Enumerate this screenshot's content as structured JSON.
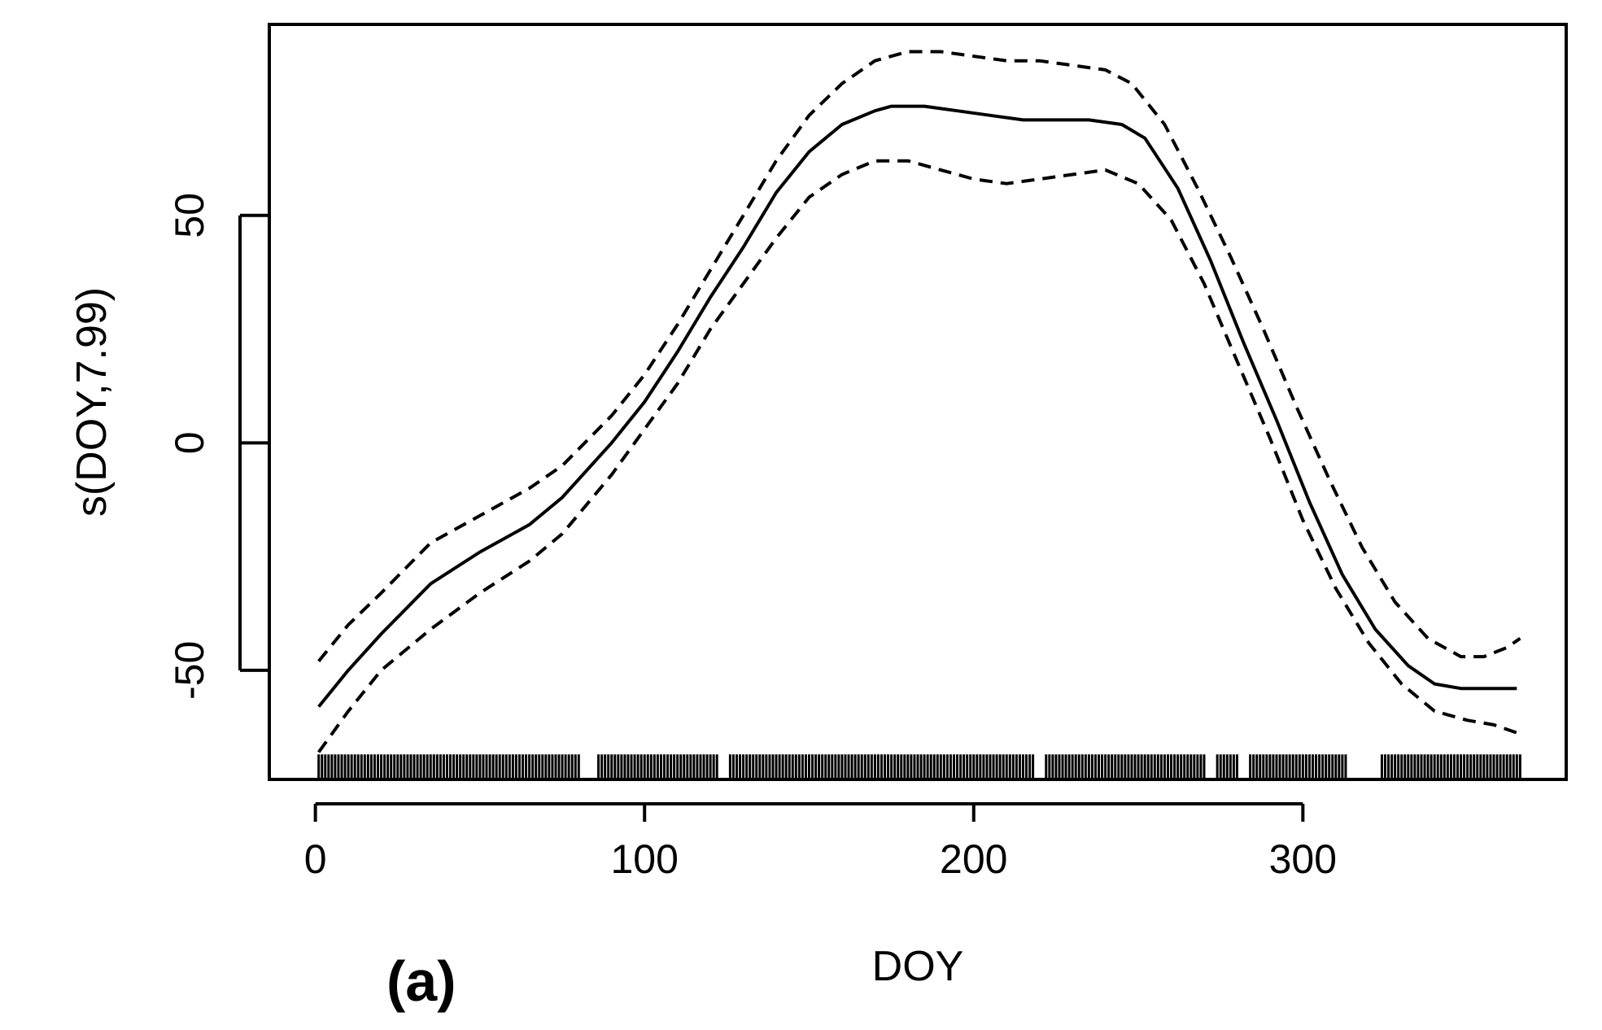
{
  "chart_data": {
    "type": "line",
    "title": "",
    "panel_label": "(a)",
    "xlabel": "DOY",
    "ylabel": "s(DOY,7.99)",
    "xlim": [
      -14,
      380
    ],
    "ylim": [
      -74,
      92
    ],
    "x_ticks": [
      0,
      100,
      200,
      300
    ],
    "x_tick_labels": [
      "0",
      "100",
      "200",
      "300"
    ],
    "y_ticks": [
      -50,
      0,
      50
    ],
    "y_tick_labels": [
      "-50",
      "0",
      "50"
    ],
    "grid": false,
    "legend": "none",
    "line_color": "#000000",
    "series": [
      {
        "style": "solid",
        "x": [
          1,
          10,
          20,
          35,
          50,
          65,
          75,
          90,
          100,
          110,
          120,
          130,
          140,
          150,
          160,
          170,
          175,
          185,
          195,
          205,
          215,
          225,
          235,
          245,
          252,
          262,
          272,
          282,
          292,
          302,
          312,
          322,
          332,
          340,
          348,
          355,
          365
        ],
        "y": [
          -58,
          -50,
          -42,
          -31,
          -24,
          -18,
          -12,
          0,
          9,
          20,
          32,
          43,
          55,
          64,
          70,
          73,
          74,
          74,
          73,
          72,
          71,
          71,
          71,
          70,
          67,
          56,
          40,
          22,
          5,
          -13,
          -29,
          -41,
          -49,
          -53,
          -54,
          -54,
          -54
        ]
      },
      {
        "style": "dashed",
        "name_hint": "upper",
        "x": [
          1,
          10,
          20,
          35,
          50,
          65,
          75,
          90,
          100,
          110,
          120,
          130,
          140,
          150,
          160,
          170,
          180,
          190,
          200,
          210,
          220,
          230,
          240,
          248,
          258,
          268,
          278,
          288,
          298,
          308,
          318,
          328,
          338,
          348,
          355,
          362,
          366
        ],
        "y": [
          -48,
          -40,
          -33,
          -22,
          -16,
          -10,
          -5,
          6,
          15,
          26,
          38,
          50,
          62,
          72,
          79,
          84,
          86,
          86,
          85,
          84,
          84,
          83,
          82,
          79,
          70,
          56,
          41,
          25,
          8,
          -8,
          -23,
          -35,
          -43,
          -47,
          -47,
          -45,
          -43
        ]
      },
      {
        "style": "dashed",
        "name_hint": "lower",
        "x": [
          1,
          10,
          20,
          35,
          50,
          65,
          75,
          90,
          100,
          110,
          120,
          130,
          140,
          150,
          160,
          170,
          180,
          190,
          200,
          210,
          220,
          230,
          240,
          250,
          260,
          270,
          280,
          290,
          300,
          310,
          320,
          330,
          340,
          350,
          358,
          366
        ],
        "y": [
          -68,
          -59,
          -50,
          -41,
          -33,
          -26,
          -20,
          -7,
          3,
          13,
          25,
          35,
          45,
          54,
          59,
          62,
          62,
          60,
          58,
          57,
          58,
          59,
          60,
          57,
          49,
          35,
          18,
          1,
          -17,
          -32,
          -44,
          -53,
          -59,
          -61,
          -62,
          -64
        ]
      }
    ],
    "rug": {
      "description": "tick marks at observed DOY values along bottom",
      "x_start": 1,
      "x_end": 366,
      "gaps": [
        [
          80,
          86
        ],
        [
          122,
          126
        ],
        [
          218,
          222
        ],
        [
          270,
          274
        ],
        [
          280,
          284
        ],
        [
          313,
          324
        ]
      ]
    }
  }
}
